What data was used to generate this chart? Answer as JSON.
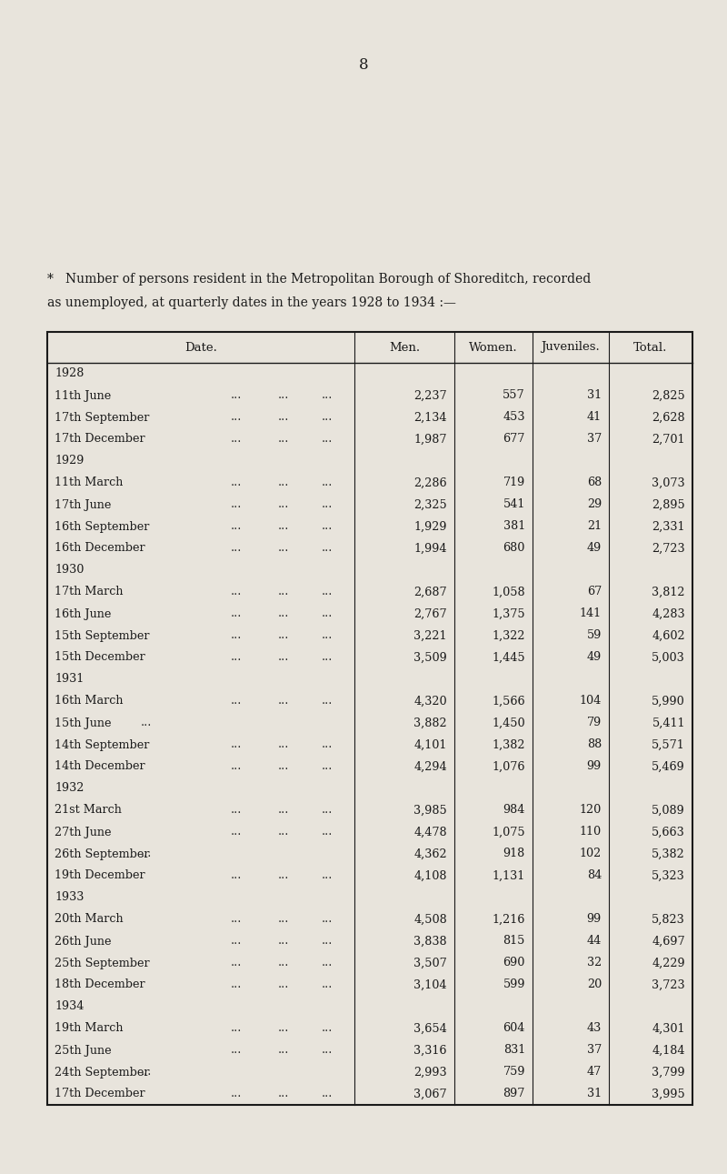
{
  "page_number": "8",
  "description_line1": "Number of persons resident in the Metropolitan Borough of Shoreditch, recorded",
  "description_line2": "as unemployed, at quarterly dates in the years 1928 to 1934 :—",
  "description_bullet": "*",
  "col_headers": [
    "Date.",
    "Men.",
    "Women.",
    "Juveniles.",
    "Total."
  ],
  "background_color": "#e8e4dc",
  "text_color": "#1a1a1a",
  "rows": [
    {
      "year": "1928",
      "date": null,
      "men": null,
      "women": null,
      "juveniles": null,
      "total": null
    },
    {
      "year": null,
      "date": "11th June",
      "dots": true,
      "men": "2,237",
      "women": "557",
      "juveniles": "31",
      "total": "2,825"
    },
    {
      "year": null,
      "date": "17th September",
      "dots": true,
      "men": "2,134",
      "women": "453",
      "juveniles": "41",
      "total": "2,628"
    },
    {
      "year": null,
      "date": "17th December",
      "dots": true,
      "men": "1,987",
      "women": "677",
      "juveniles": "37",
      "total": "2,701"
    },
    {
      "year": "1929",
      "date": null,
      "men": null,
      "women": null,
      "juveniles": null,
      "total": null
    },
    {
      "year": null,
      "date": "11th March",
      "dots": true,
      "men": "2,286",
      "women": "719",
      "juveniles": "68",
      "total": "3,073"
    },
    {
      "year": null,
      "date": "17th June",
      "dots": true,
      "men": "2,325",
      "women": "541",
      "juveniles": "29",
      "total": "2,895"
    },
    {
      "year": null,
      "date": "16th September",
      "dots": true,
      "men": "1,929",
      "women": "381",
      "juveniles": "21",
      "total": "2,331"
    },
    {
      "year": null,
      "date": "16th December",
      "dots": true,
      "men": "1,994",
      "women": "680",
      "juveniles": "49",
      "total": "2,723"
    },
    {
      "year": "1930",
      "date": null,
      "men": null,
      "women": null,
      "juveniles": null,
      "total": null
    },
    {
      "year": null,
      "date": "17th March",
      "dots": true,
      "men": "2,687",
      "women": "1,058",
      "juveniles": "67",
      "total": "3,812"
    },
    {
      "year": null,
      "date": "16th June",
      "dots": true,
      "men": "2,767",
      "women": "1,375",
      "juveniles": "141",
      "total": "4,283"
    },
    {
      "year": null,
      "date": "15th September",
      "dots": true,
      "men": "3,221",
      "women": "1,322",
      "juveniles": "59",
      "total": "4,602"
    },
    {
      "year": null,
      "date": "15th December",
      "dots": true,
      "men": "3,509",
      "women": "1,445",
      "juveniles": "49",
      "total": "5,003"
    },
    {
      "year": "1931",
      "date": null,
      "men": null,
      "women": null,
      "juveniles": null,
      "total": null
    },
    {
      "year": null,
      "date": "16th March",
      "dots": true,
      "men": "4,320",
      "women": "1,566",
      "juveniles": "104",
      "total": "5,990"
    },
    {
      "year": null,
      "date": "15th June ...",
      "dots": false,
      "men": "3,882",
      "women": "1,450",
      "juveniles": "79",
      "total": "5,411"
    },
    {
      "year": null,
      "date": "14th September",
      "dots": true,
      "men": "4,101",
      "women": "1,382",
      "juveniles": "88",
      "total": "5,571"
    },
    {
      "year": null,
      "date": "14th December",
      "dots": true,
      "men": "4,294",
      "women": "1,076",
      "juveniles": "99",
      "total": "5,469"
    },
    {
      "year": "1932",
      "date": null,
      "men": null,
      "women": null,
      "juveniles": null,
      "total": null
    },
    {
      "year": null,
      "date": "21st March",
      "dots": true,
      "men": "3,985",
      "women": "984",
      "juveniles": "120",
      "total": "5,089"
    },
    {
      "year": null,
      "date": "27th June",
      "dots": true,
      "men": "4,478",
      "women": "1,075",
      "juveniles": "110",
      "total": "5,663"
    },
    {
      "year": null,
      "date": "26th September ...",
      "dots": false,
      "men": "4,362",
      "women": "918",
      "juveniles": "102",
      "total": "5,382"
    },
    {
      "year": null,
      "date": "19th December",
      "dots": true,
      "men": "4,108",
      "women": "1,131",
      "juveniles": "84",
      "total": "5,323"
    },
    {
      "year": "1933",
      "date": null,
      "men": null,
      "women": null,
      "juveniles": null,
      "total": null
    },
    {
      "year": null,
      "date": "20th March",
      "dots": true,
      "men": "4,508",
      "women": "1,216",
      "juveniles": "99",
      "total": "5,823"
    },
    {
      "year": null,
      "date": "26th June",
      "dots": true,
      "men": "3,838",
      "women": "815",
      "juveniles": "44",
      "total": "4,697"
    },
    {
      "year": null,
      "date": "25th September",
      "dots": true,
      "men": "3,507",
      "women": "690",
      "juveniles": "32",
      "total": "4,229"
    },
    {
      "year": null,
      "date": "18th December",
      "dots": true,
      "men": "3,104",
      "women": "599",
      "juveniles": "20",
      "total": "3,723"
    },
    {
      "year": "1934",
      "date": null,
      "men": null,
      "women": null,
      "juveniles": null,
      "total": null
    },
    {
      "year": null,
      "date": "19th March",
      "dots": true,
      "men": "3,654",
      "women": "604",
      "juveniles": "43",
      "total": "4,301"
    },
    {
      "year": null,
      "date": "25th June",
      "dots": true,
      "men": "3,316",
      "women": "831",
      "juveniles": "37",
      "total": "4,184"
    },
    {
      "year": null,
      "date": "24th September ...",
      "dots": false,
      "men": "2,993",
      "women": "759",
      "juveniles": "47",
      "total": "3,799"
    },
    {
      "year": null,
      "date": "17th December",
      "dots": true,
      "men": "3,067",
      "women": "897",
      "juveniles": "31",
      "total": "3,995"
    }
  ]
}
